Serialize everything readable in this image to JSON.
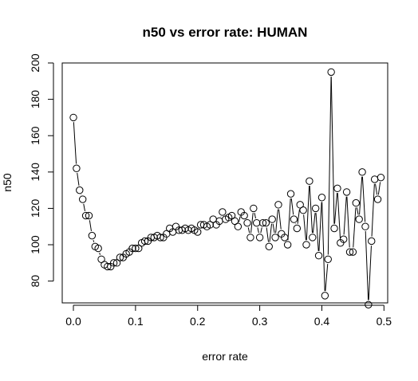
{
  "chart_data": {
    "type": "line",
    "title": "n50 vs error rate: HUMAN",
    "xlabel": "error rate",
    "ylabel": "n50",
    "xlim": [
      -0.018,
      0.506
    ],
    "ylim": [
      68,
      200
    ],
    "x_ticks": [
      0.0,
      0.1,
      0.2,
      0.3,
      0.4,
      0.5
    ],
    "x_tick_labels": [
      "0.0",
      "0.1",
      "0.2",
      "0.3",
      "0.4",
      "0.5"
    ],
    "y_ticks": [
      80,
      100,
      120,
      140,
      160,
      180,
      200
    ],
    "y_tick_labels": [
      "80",
      "100",
      "120",
      "140",
      "160",
      "180",
      "200"
    ],
    "grid": false,
    "legend": "none",
    "line_color": "#000000",
    "marker": "open-circle",
    "series": [
      {
        "x": [
          0.0,
          0.005,
          0.01,
          0.015,
          0.02,
          0.025,
          0.03,
          0.035,
          0.04,
          0.045,
          0.05,
          0.055,
          0.06,
          0.065,
          0.07,
          0.075,
          0.08,
          0.085,
          0.09,
          0.095,
          0.1,
          0.105,
          0.11,
          0.115,
          0.12,
          0.125,
          0.13,
          0.135,
          0.14,
          0.145,
          0.15,
          0.155,
          0.16,
          0.165,
          0.17,
          0.175,
          0.18,
          0.185,
          0.19,
          0.195,
          0.2,
          0.205,
          0.21,
          0.215,
          0.22,
          0.225,
          0.23,
          0.235,
          0.24,
          0.245,
          0.25,
          0.255,
          0.26,
          0.265,
          0.27,
          0.275,
          0.28,
          0.285,
          0.29,
          0.295,
          0.3,
          0.305,
          0.31,
          0.315,
          0.32,
          0.325,
          0.33,
          0.335,
          0.34,
          0.345,
          0.35,
          0.355,
          0.36,
          0.365,
          0.37,
          0.375,
          0.38,
          0.385,
          0.39,
          0.395,
          0.4,
          0.405,
          0.41,
          0.415,
          0.42,
          0.425,
          0.43,
          0.435,
          0.44,
          0.445,
          0.45,
          0.455,
          0.46,
          0.465,
          0.47,
          0.475,
          0.48,
          0.485,
          0.49,
          0.495
        ],
        "y": [
          170,
          142,
          130,
          125,
          116,
          116,
          105,
          99,
          98,
          92,
          89,
          88,
          88,
          90,
          90,
          93,
          93,
          95,
          96,
          98,
          98,
          98,
          101,
          102,
          102,
          104,
          104,
          105,
          104,
          104,
          106,
          109,
          107,
          110,
          108,
          108,
          109,
          108,
          109,
          108,
          107,
          111,
          111,
          110,
          111,
          114,
          111,
          113,
          118,
          114,
          115,
          116,
          113,
          110,
          118,
          116,
          112,
          104,
          120,
          112,
          104,
          112,
          112,
          99,
          114,
          104,
          122,
          106,
          104,
          100,
          128,
          114,
          109,
          122,
          119,
          100,
          135,
          104,
          120,
          94,
          126,
          72,
          92,
          195,
          109,
          131,
          101,
          103,
          129,
          96,
          96,
          123,
          114,
          140,
          110,
          67,
          102,
          136,
          125,
          137
        ]
      }
    ]
  }
}
